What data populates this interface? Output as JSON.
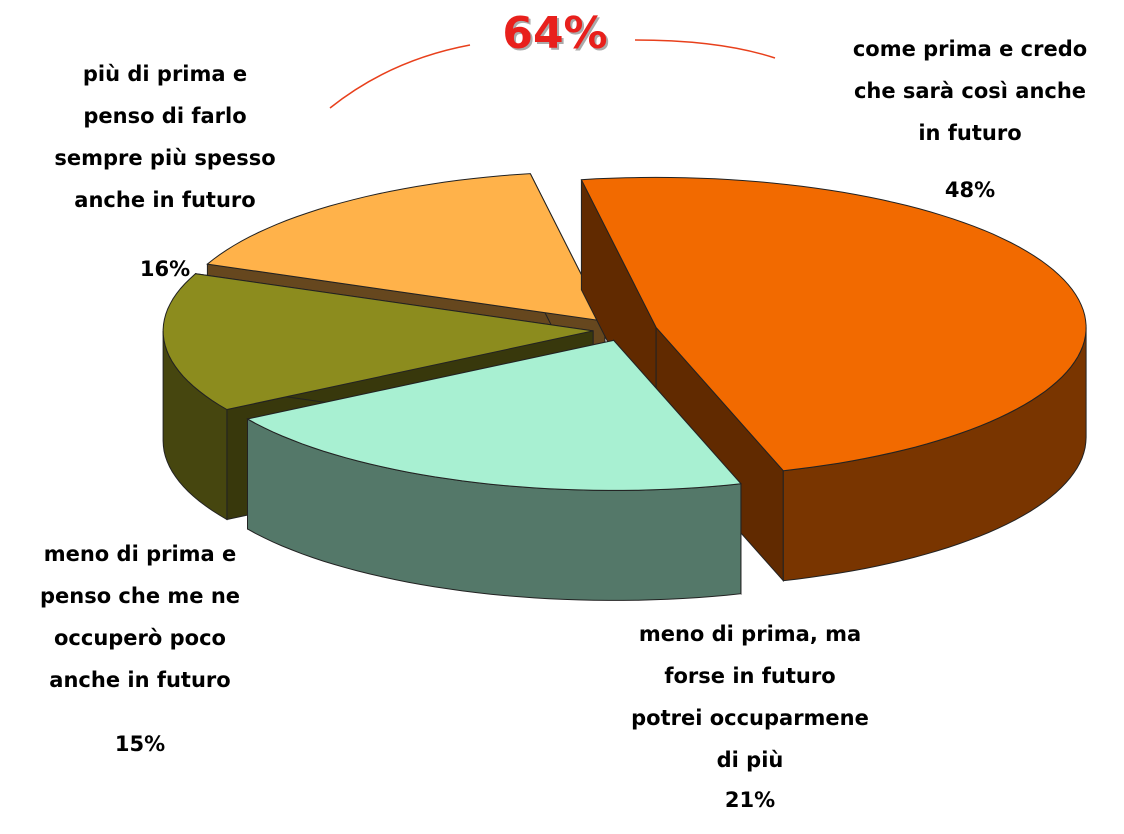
{
  "chart_data": {
    "type": "pie3d",
    "categories": [
      "come prima e credo\nche sarà così anche\nin futuro",
      "meno di prima, ma\nforse in futuro\npotrei occuparmene\ndi più",
      "meno di prima e\npenso che me ne\noccuperò poco\nanche in futuro",
      "più di prima e\npenso di farlo\nsempre più spesso\nanche in futuro"
    ],
    "values": [
      48,
      21,
      15,
      16
    ],
    "value_labels": [
      "48%",
      "21%",
      "15%",
      "16%"
    ],
    "colors": [
      "#f26a00",
      "#a8f0d2",
      "#8c8c1e",
      "#ffb24a"
    ],
    "annotation": "64%"
  }
}
